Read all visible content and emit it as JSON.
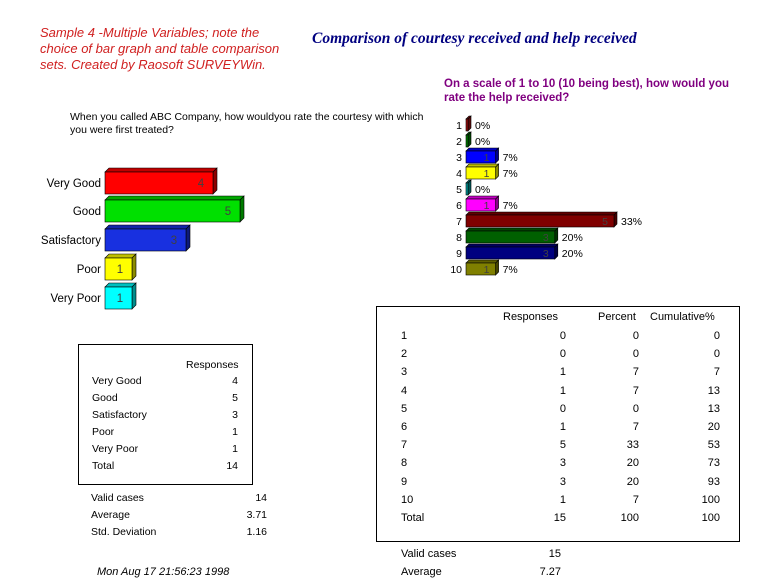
{
  "note": "Sample 4 -Multiple Variables; note the choice of bar graph and table comparison sets. Created by Raosoft SURVEYWin.",
  "main_title": "Comparison of courtesy received and help received",
  "chart_data": [
    {
      "type": "bar",
      "orientation": "horizontal",
      "title": "When you called ABC Company,  how wouldyou rate the courtesy with which you were first treated?",
      "categories": [
        "Very Good",
        "Good",
        "Satisfactory",
        "Poor",
        "Very Poor"
      ],
      "values": [
        4,
        5,
        3,
        1,
        1
      ],
      "data_labels": [
        "4",
        "5",
        "3",
        "1",
        "1"
      ],
      "colors": [
        "#ff0000",
        "#00e000",
        "#1830e0",
        "#ffff00",
        "#00ffff"
      ],
      "grid": false
    },
    {
      "type": "bar",
      "orientation": "horizontal",
      "title": "On a scale of 1 to 10 (10 being best), how would you rate the help received?",
      "categories": [
        "1",
        "2",
        "3",
        "4",
        "5",
        "6",
        "7",
        "8",
        "9",
        "10"
      ],
      "values": [
        0,
        0,
        1,
        1,
        0,
        1,
        5,
        3,
        3,
        1
      ],
      "percents": [
        "0%",
        "0%",
        "7%",
        "7%",
        "0%",
        "7%",
        "33%",
        "20%",
        "20%",
        "7%"
      ],
      "data_labels": [
        "",
        "",
        "1",
        "1",
        "",
        "1",
        "5",
        "3",
        "3",
        "1"
      ],
      "colors": [
        "#a01010",
        "#008000",
        "#0000ff",
        "#ffff00",
        "#00a0a0",
        "#ff00ff",
        "#800000",
        "#006000",
        "#000080",
        "#808000"
      ],
      "grid": false
    }
  ],
  "table_left": {
    "header": "Responses",
    "rows": [
      {
        "label": "Very Good",
        "value": "4"
      },
      {
        "label": "Good",
        "value": "5"
      },
      {
        "label": "Satisfactory",
        "value": "3"
      },
      {
        "label": "Poor",
        "value": "1"
      },
      {
        "label": "Very Poor",
        "value": "1"
      },
      {
        "label": "Total",
        "value": "14"
      }
    ],
    "stats": [
      {
        "label": "Valid cases",
        "value": "14"
      },
      {
        "label": "Average",
        "value": "3.71"
      },
      {
        "label": "Std. Deviation",
        "value": "1.16"
      }
    ]
  },
  "table_right": {
    "headers": [
      "Responses",
      "Percent",
      "Cumulative%"
    ],
    "rows": [
      {
        "label": "1",
        "responses": "0",
        "percent": "0",
        "cumulative": "0"
      },
      {
        "label": "2",
        "responses": "0",
        "percent": "0",
        "cumulative": "0"
      },
      {
        "label": "3",
        "responses": "1",
        "percent": "7",
        "cumulative": "7"
      },
      {
        "label": "4",
        "responses": "1",
        "percent": "7",
        "cumulative": "13"
      },
      {
        "label": "5",
        "responses": "0",
        "percent": "0",
        "cumulative": "13"
      },
      {
        "label": "6",
        "responses": "1",
        "percent": "7",
        "cumulative": "20"
      },
      {
        "label": "7",
        "responses": "5",
        "percent": "33",
        "cumulative": "53"
      },
      {
        "label": "8",
        "responses": "3",
        "percent": "20",
        "cumulative": "73"
      },
      {
        "label": "9",
        "responses": "3",
        "percent": "20",
        "cumulative": "93"
      },
      {
        "label": "10",
        "responses": "1",
        "percent": "7",
        "cumulative": "100"
      },
      {
        "label": "Total",
        "responses": "15",
        "percent": "100",
        "cumulative": "100"
      }
    ],
    "stats": [
      {
        "label": "Valid cases",
        "value": "15"
      },
      {
        "label": "Average",
        "value": "7.27"
      }
    ]
  },
  "timestamp": "Mon Aug 17 21:56:23 1998"
}
